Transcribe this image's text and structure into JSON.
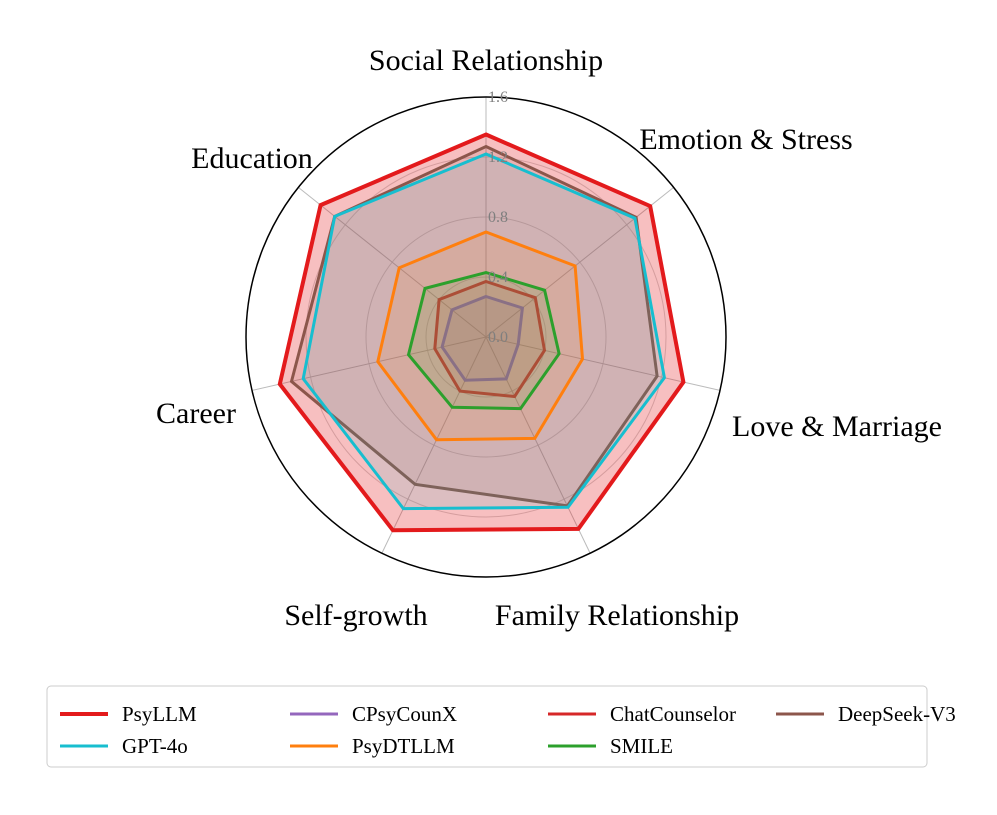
{
  "chart_data": {
    "type": "radar",
    "axes": [
      "Social Relationship",
      "Emotion & Stress",
      "Love & Marriage",
      "Family Relationship",
      "Self-growth",
      "Career",
      "Education"
    ],
    "rlim": [
      0.0,
      1.6
    ],
    "ticks": [
      "0.0",
      "0.4",
      "0.8",
      "1.2",
      "1.6"
    ],
    "tick_values": [
      0.0,
      0.4,
      0.8,
      1.2,
      1.6
    ],
    "grid": true,
    "legend_position": "bottom",
    "series": [
      {
        "name": "PsyLLM",
        "color": "#e31a1c",
        "filled": true,
        "values": [
          1.35,
          1.4,
          1.35,
          1.42,
          1.43,
          1.41,
          1.41
        ]
      },
      {
        "name": "CPsyCounX",
        "color": "#9467bd",
        "filled": false,
        "values": [
          0.27,
          0.31,
          0.22,
          0.31,
          0.32,
          0.3,
          0.29
        ]
      },
      {
        "name": "ChatCounselor",
        "color": "#d62728",
        "filled": false,
        "values": [
          0.37,
          0.42,
          0.4,
          0.44,
          0.4,
          0.35,
          0.4
        ]
      },
      {
        "name": "DeepSeek-V3",
        "color": "#8c564b",
        "filled": false,
        "values": [
          1.27,
          1.28,
          1.17,
          1.25,
          1.09,
          1.33,
          1.29
        ]
      },
      {
        "name": "GPT-4o",
        "color": "#17becf",
        "filled": false,
        "values": [
          1.22,
          1.27,
          1.22,
          1.26,
          1.27,
          1.25,
          1.29
        ]
      },
      {
        "name": "PsyDTLLM",
        "color": "#ff7f0e",
        "filled": false,
        "values": [
          0.7,
          0.76,
          0.66,
          0.75,
          0.76,
          0.74,
          0.74
        ]
      },
      {
        "name": "SMILE",
        "color": "#2ca02c",
        "filled": false,
        "values": [
          0.43,
          0.5,
          0.5,
          0.53,
          0.52,
          0.53,
          0.52
        ]
      }
    ]
  }
}
